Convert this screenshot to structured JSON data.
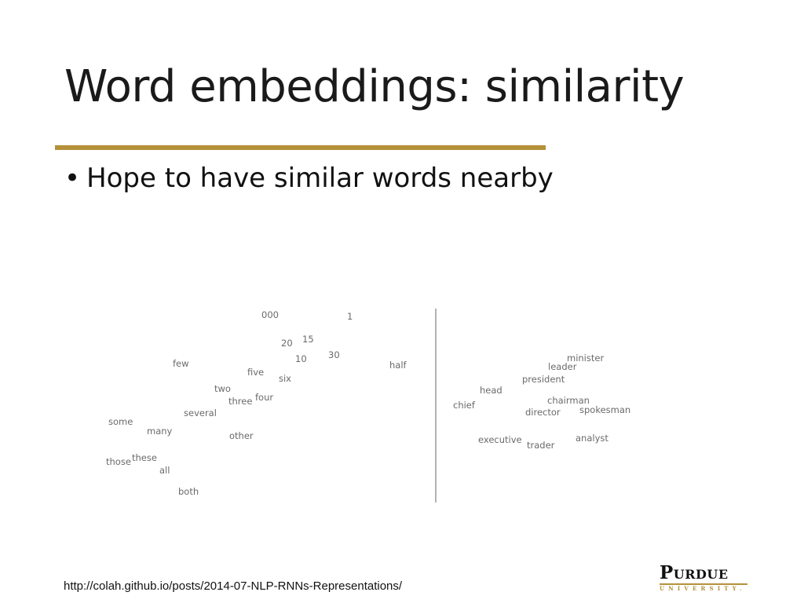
{
  "slide": {
    "title": "Word embeddings: similarity",
    "bullet_symbol": "•",
    "bullet": "Hope to have similar words nearby",
    "citation": "http://colah.github.io/posts/2014-07-NLP-RNNs-Representations/",
    "accent_color": "#b5913a"
  },
  "logo": {
    "name": "Purdue",
    "subtitle": "UNIVERSITY."
  },
  "figure": {
    "left_cluster_words": [
      "000",
      "1",
      "20",
      "15",
      "10",
      "30",
      "few",
      "five",
      "six",
      "half",
      "two",
      "four",
      "three",
      "several",
      "some",
      "many",
      "other",
      "these",
      "those",
      "all",
      "both"
    ],
    "right_cluster_words": [
      "minister",
      "leader",
      "president",
      "head",
      "chairman",
      "chief",
      "director",
      "spokesman",
      "executive",
      "trader",
      "analyst"
    ]
  }
}
